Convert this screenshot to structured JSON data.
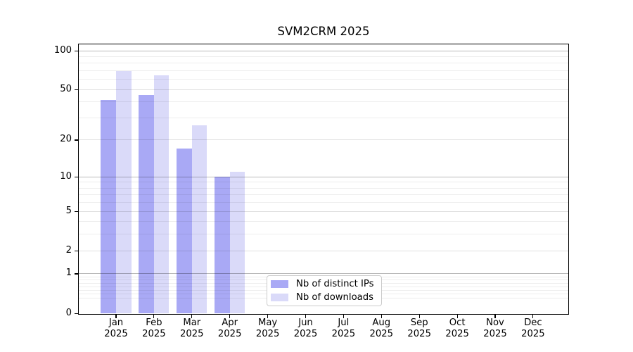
{
  "title": "SVM2CRM 2025",
  "legend": {
    "items": [
      {
        "label": "Nb of distinct IPs"
      },
      {
        "label": "Nb of downloads"
      }
    ]
  },
  "chart_data": {
    "type": "bar",
    "title": "SVM2CRM 2025",
    "categories": [
      "Jan",
      "Feb",
      "Mar",
      "Apr",
      "May",
      "Jun",
      "Jul",
      "Aug",
      "Sep",
      "Oct",
      "Nov",
      "Dec"
    ],
    "year": "2025",
    "series": [
      {
        "name": "Nb of distinct IPs",
        "color": "#a9a9f5",
        "values": [
          41,
          45,
          17,
          10,
          0,
          0,
          0,
          0,
          0,
          0,
          0,
          0
        ]
      },
      {
        "name": "Nb of downloads",
        "color": "#dadaf9",
        "values": [
          69,
          64,
          26,
          11,
          0,
          0,
          0,
          0,
          0,
          0,
          0,
          0
        ]
      }
    ],
    "y_scale": "log1p",
    "y_ticks": [
      0,
      1,
      2,
      5,
      10,
      20,
      50,
      100
    ],
    "y_major_gridlines": [
      1,
      10,
      100
    ],
    "y_minor_gridlines": [
      0.3,
      0.4,
      0.5,
      0.6,
      0.7,
      0.8,
      0.9,
      3,
      4,
      6,
      7,
      8,
      9,
      30,
      40,
      60,
      70,
      80,
      90
    ],
    "ylim": [
      0,
      112
    ],
    "xlabel": "",
    "ylabel": "",
    "grid": true,
    "legend_position": "inside lower center"
  },
  "colors": {
    "bar_distinct_ips": "#a9a9f5",
    "bar_downloads": "#dadaf9",
    "spine": "#000000",
    "legend_border": "#cbcbcb",
    "background": "#ffffff"
  }
}
